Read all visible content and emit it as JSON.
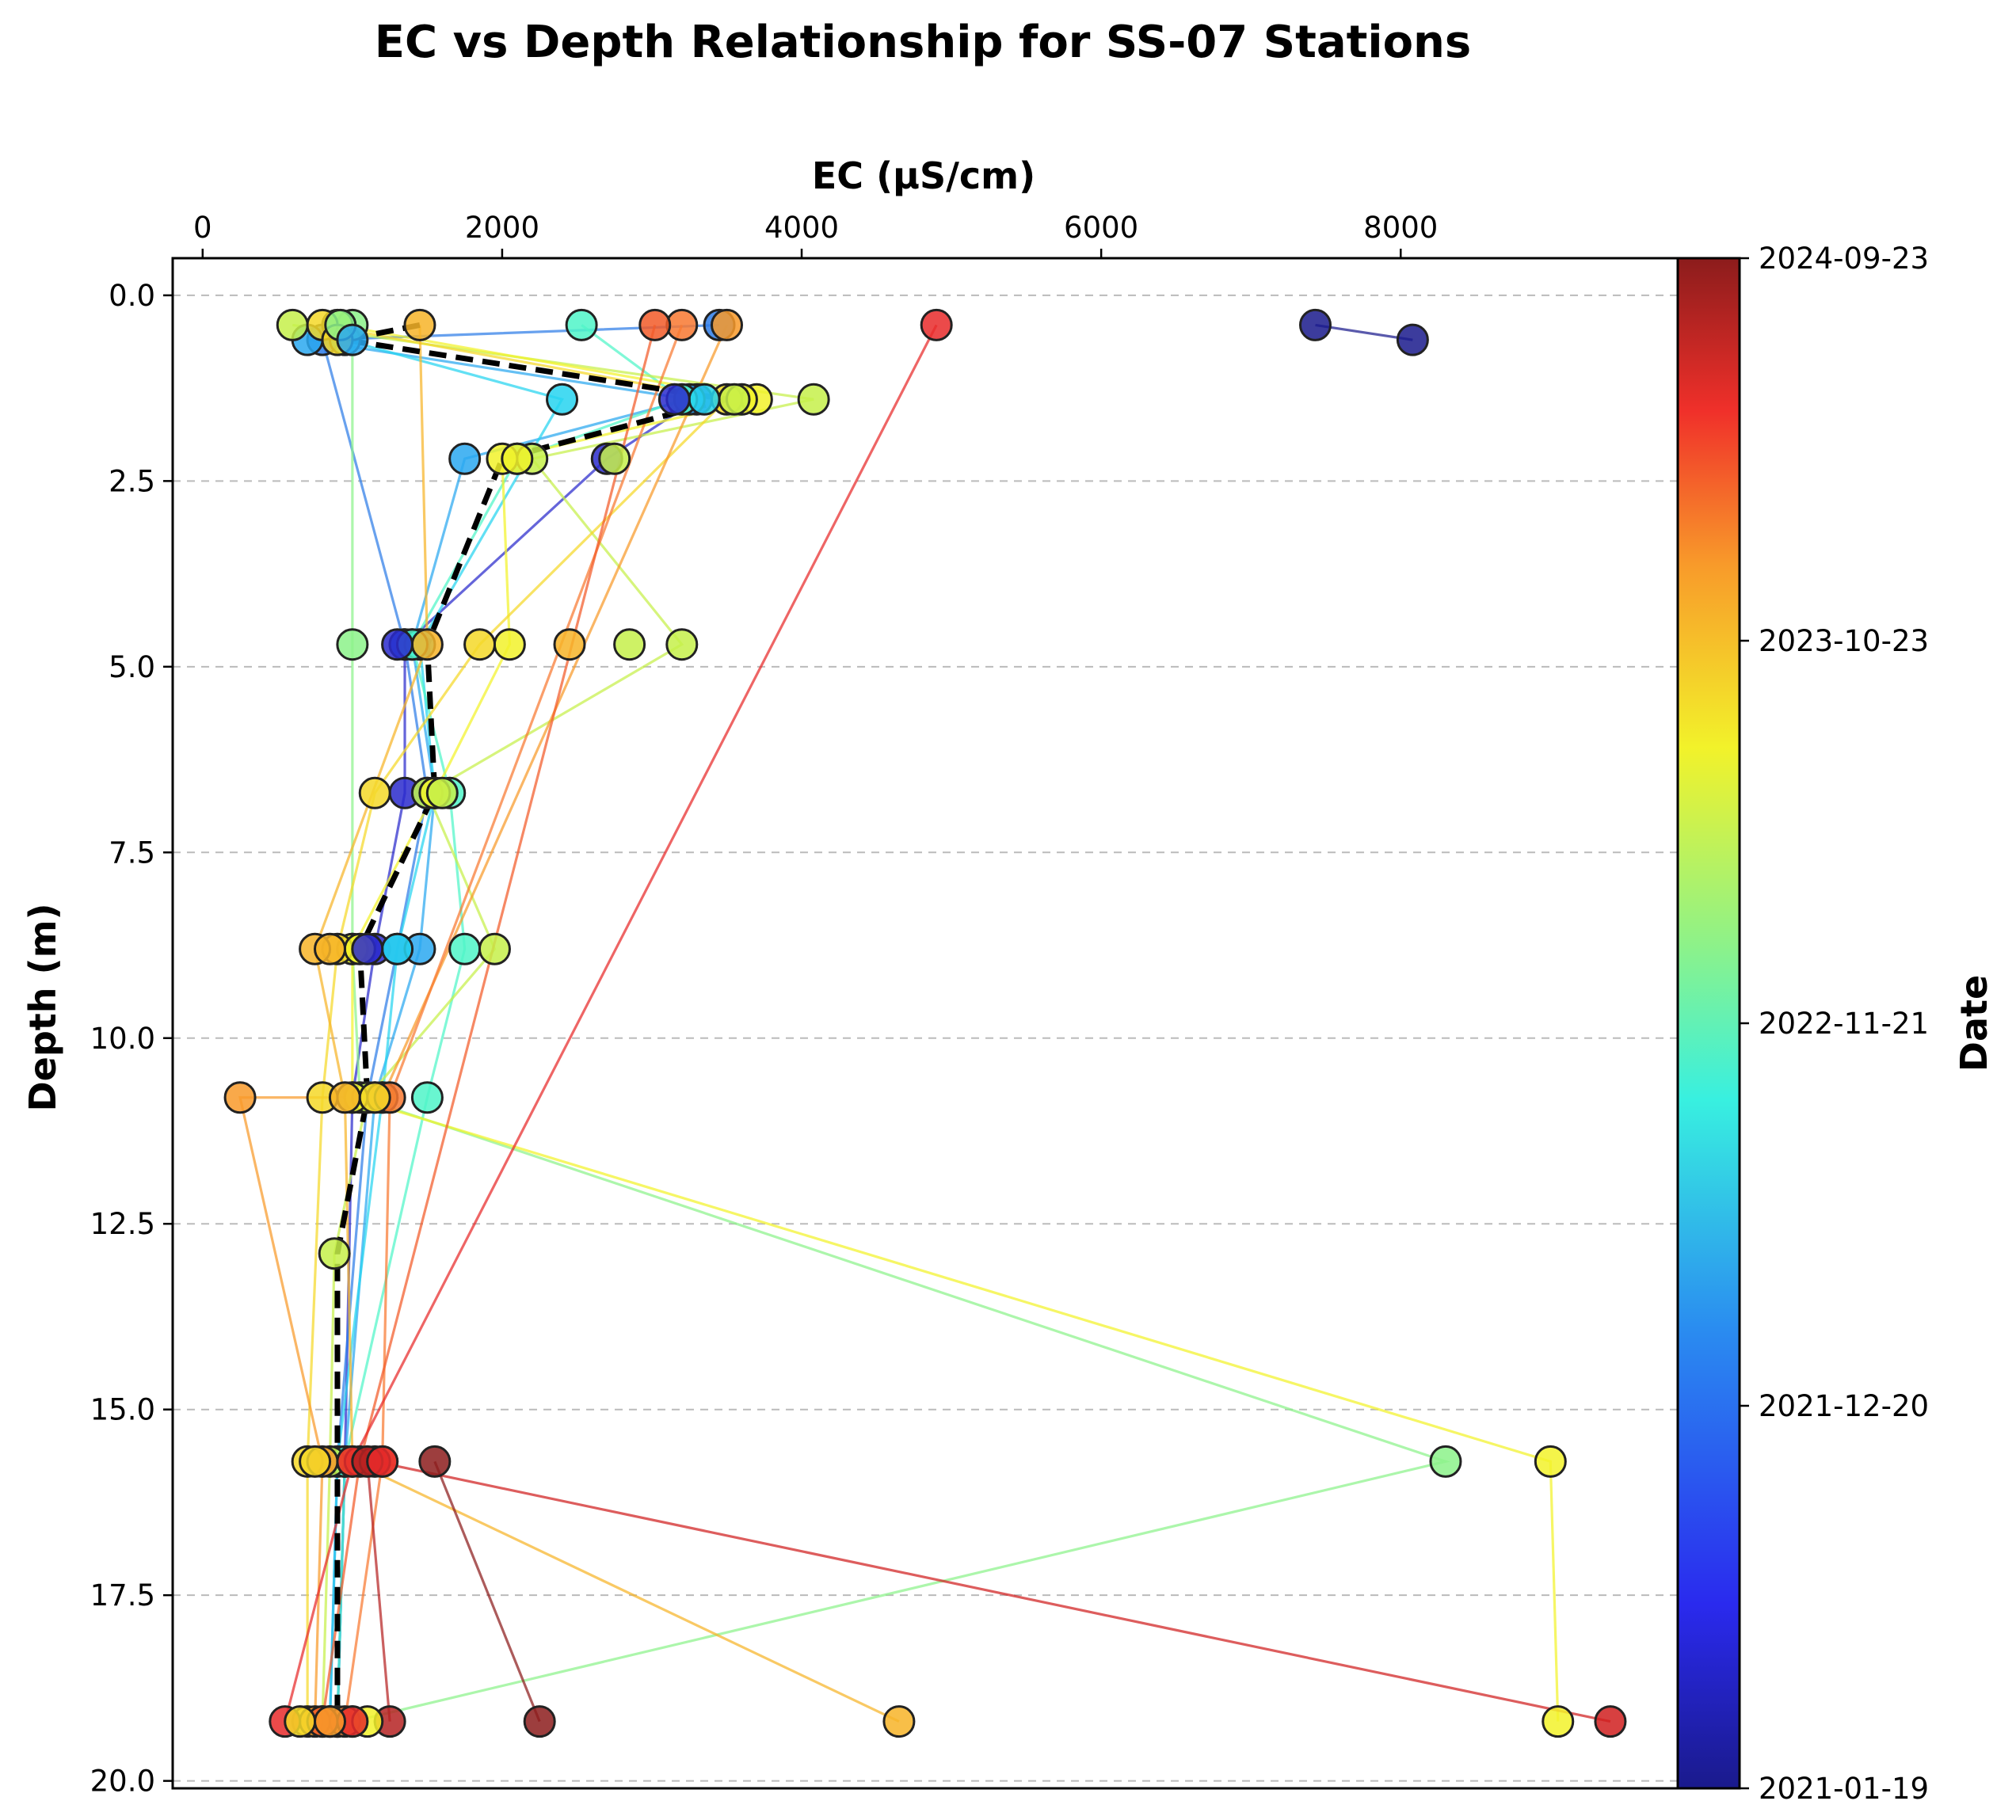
{
  "chart_data": {
    "type": "scatter",
    "title": "EC vs Depth Relationship for SS-07 Stations",
    "xlabel": "EC (µS/cm)",
    "ylabel": "Depth (m)",
    "x_axis_position": "top",
    "y_axis_inverted": true,
    "xlim": [
      -200,
      9850
    ],
    "ylim": [
      -0.5,
      20.1
    ],
    "x_ticks": [
      "0",
      "2000",
      "4000",
      "6000",
      "8000"
    ],
    "y_ticks": [
      "0.0",
      "2.5",
      "5.0",
      "7.5",
      "10.0",
      "12.5",
      "15.0",
      "17.5",
      "20.0"
    ],
    "grid": "y-dashed",
    "colorbar": {
      "label": "Date",
      "colormap": "jet",
      "ticks": [
        "2021-01-19",
        "2021-12-20",
        "2022-11-21",
        "2023-10-23",
        "2024-09-23"
      ]
    },
    "depths": [
      0.4,
      0.6,
      1.4,
      2.2,
      4.7,
      6.7,
      8.8,
      10.8,
      12.9,
      15.7,
      19.2
    ],
    "series": [
      {
        "date_frac": 0.03,
        "color": "#1a1a8c",
        "points": [
          [
            7430,
            0.4
          ],
          [
            8080,
            0.6
          ]
        ]
      },
      {
        "date_frac": 0.1,
        "color": "#2a2acc",
        "points": [
          [
            3300,
            1.4
          ],
          [
            2700,
            2.2
          ],
          [
            1350,
            4.7
          ],
          [
            1350,
            6.7
          ],
          [
            1150,
            8.8
          ],
          [
            1000,
            10.8
          ],
          [
            950,
            15.7
          ],
          [
            900,
            19.2
          ]
        ]
      },
      {
        "date_frac": 0.18,
        "color": "#2e7de8",
        "points": [
          [
            3450,
            0.4
          ],
          [
            800,
            0.6
          ],
          [
            1350,
            4.7
          ],
          [
            1500,
            6.7
          ],
          [
            1300,
            8.8
          ],
          [
            1100,
            10.8
          ],
          [
            900,
            15.7
          ],
          [
            850,
            19.2
          ]
        ]
      },
      {
        "date_frac": 0.26,
        "color": "#2aa8f0",
        "points": [
          [
            700,
            0.6
          ],
          [
            3250,
            1.4
          ],
          [
            1750,
            2.2
          ],
          [
            1400,
            4.7
          ],
          [
            1550,
            6.7
          ],
          [
            1450,
            8.8
          ],
          [
            1150,
            10.8
          ],
          [
            950,
            15.7
          ],
          [
            900,
            19.2
          ]
        ]
      },
      {
        "date_frac": 0.33,
        "color": "#26d4f0",
        "points": [
          [
            950,
            0.6
          ],
          [
            2400,
            1.4
          ],
          [
            1450,
            4.7
          ],
          [
            1550,
            6.7
          ],
          [
            1300,
            8.8
          ],
          [
            1200,
            10.8
          ],
          [
            900,
            15.7
          ],
          [
            850,
            19.2
          ]
        ]
      },
      {
        "date_frac": 0.42,
        "color": "#4ff5c8",
        "points": [
          [
            2530,
            0.4
          ],
          [
            3200,
            1.4
          ],
          [
            2100,
            2.2
          ],
          [
            1400,
            4.7
          ],
          [
            1650,
            6.7
          ],
          [
            1750,
            8.8
          ],
          [
            1500,
            10.8
          ],
          [
            950,
            15.7
          ],
          [
            900,
            19.2
          ]
        ]
      },
      {
        "date_frac": 0.5,
        "color": "#8cf28a",
        "points": [
          [
            1000,
            0.4
          ],
          [
            1000,
            4.7
          ],
          [
            1000,
            8.8
          ],
          [
            1050,
            10.8
          ],
          [
            8300,
            15.7
          ],
          [
            1000,
            19.2
          ]
        ]
      },
      {
        "date_frac": 0.58,
        "color": "#c6f04a",
        "points": [
          [
            600,
            0.4
          ],
          [
            4080,
            1.4
          ],
          [
            2200,
            2.2
          ],
          [
            3200,
            4.7
          ],
          [
            1500,
            6.7
          ],
          [
            1950,
            8.8
          ],
          [
            1100,
            10.8
          ],
          [
            880,
            12.9
          ],
          [
            850,
            15.7
          ],
          [
            800,
            19.2
          ]
        ]
      },
      {
        "date_frac": 0.66,
        "color": "#f2f22a",
        "points": [
          [
            900,
            0.4
          ],
          [
            3700,
            1.4
          ],
          [
            2000,
            2.2
          ],
          [
            2050,
            4.7
          ],
          [
            1550,
            6.7
          ],
          [
            1000,
            8.8
          ],
          [
            1000,
            10.8
          ],
          [
            9000,
            15.7
          ],
          [
            9050,
            19.2
          ]
        ]
      },
      {
        "date_frac": 0.72,
        "color": "#f5d828",
        "points": [
          [
            800,
            0.4
          ],
          [
            3500,
            1.4
          ],
          [
            1850,
            4.7
          ],
          [
            1150,
            6.7
          ],
          [
            900,
            8.8
          ],
          [
            800,
            10.8
          ],
          [
            700,
            15.7
          ],
          [
            700,
            19.2
          ]
        ]
      },
      {
        "date_frac": 0.78,
        "color": "#f7b428",
        "points": [
          [
            1450,
            0.4
          ],
          [
            1500,
            4.7
          ],
          [
            750,
            8.8
          ],
          [
            950,
            10.8
          ],
          [
            1000,
            15.7
          ],
          [
            4650,
            19.2
          ]
        ]
      },
      {
        "date_frac": 0.82,
        "color": "#f89a2a",
        "points": [
          [
            3500,
            0.4
          ],
          [
            1200,
            10.8
          ],
          [
            250,
            10.8
          ],
          [
            800,
            15.7
          ],
          [
            750,
            19.2
          ]
        ]
      },
      {
        "date_frac": 0.86,
        "color": "#f87830",
        "points": [
          [
            3200,
            0.4
          ],
          [
            1250,
            10.8
          ],
          [
            1200,
            15.7
          ],
          [
            950,
            19.2
          ]
        ]
      },
      {
        "date_frac": 0.88,
        "color": "#f25a28",
        "points": [
          [
            3020,
            0.4
          ],
          [
            1050,
            15.7
          ],
          [
            800,
            19.2
          ]
        ]
      },
      {
        "date_frac": 0.9,
        "color": "#e82a2a",
        "points": [
          [
            4900,
            0.4
          ],
          [
            1000,
            15.7
          ],
          [
            550,
            19.2
          ]
        ]
      },
      {
        "date_frac": 0.93,
        "color": "#d01e1e",
        "points": [
          [
            1150,
            15.7
          ],
          [
            9400,
            19.2
          ]
        ]
      },
      {
        "date_frac": 0.96,
        "color": "#b52222",
        "points": [
          [
            1100,
            15.7
          ],
          [
            1250,
            19.2
          ]
        ]
      },
      {
        "date_frac": 0.99,
        "color": "#8c1c1c",
        "points": [
          [
            1550,
            15.7
          ],
          [
            2250,
            19.2
          ]
        ]
      }
    ],
    "extra_points": [
      {
        "color": "#f5d828",
        "x": 900,
        "y": 0.6
      },
      {
        "color": "#8cf28a",
        "x": 920,
        "y": 0.4
      },
      {
        "color": "#2aa8f0",
        "x": 1000,
        "y": 0.6
      },
      {
        "color": "#f2f22a",
        "x": 3600,
        "y": 1.4
      },
      {
        "color": "#c6f04a",
        "x": 3550,
        "y": 1.4
      },
      {
        "color": "#26d4f0",
        "x": 3350,
        "y": 1.4
      },
      {
        "color": "#2a2acc",
        "x": 3150,
        "y": 1.4
      },
      {
        "color": "#c6f04a",
        "x": 2750,
        "y": 2.2
      },
      {
        "color": "#f2f22a",
        "x": 2100,
        "y": 2.2
      },
      {
        "color": "#f7b428",
        "x": 2450,
        "y": 4.7
      },
      {
        "color": "#c6f04a",
        "x": 2850,
        "y": 4.7
      },
      {
        "color": "#2a2acc",
        "x": 1300,
        "y": 4.7
      },
      {
        "color": "#c6f04a",
        "x": 1600,
        "y": 6.7
      },
      {
        "color": "#f2f22a",
        "x": 1050,
        "y": 8.8
      },
      {
        "color": "#2a2acc",
        "x": 1100,
        "y": 8.8
      },
      {
        "color": "#f7b428",
        "x": 850,
        "y": 8.8
      },
      {
        "color": "#f5d828",
        "x": 1150,
        "y": 10.8
      },
      {
        "color": "#f5d828",
        "x": 750,
        "y": 15.7
      },
      {
        "color": "#e82a2a",
        "x": 1200,
        "y": 15.7
      },
      {
        "color": "#f5d828",
        "x": 650,
        "y": 19.2
      },
      {
        "color": "#f2f22a",
        "x": 1100,
        "y": 19.2
      },
      {
        "color": "#e82a2a",
        "x": 1000,
        "y": 19.2
      },
      {
        "color": "#f89a2a",
        "x": 850,
        "y": 19.2
      }
    ],
    "median_profile": {
      "style": "black-dashed",
      "points": [
        [
          1450,
          0.4
        ],
        [
          950,
          0.6
        ],
        [
          3500,
          1.4
        ],
        [
          2000,
          2.2
        ],
        [
          1500,
          4.7
        ],
        [
          1550,
          6.7
        ],
        [
          1050,
          8.8
        ],
        [
          1100,
          10.8
        ],
        [
          900,
          12.9
        ],
        [
          900,
          15.7
        ],
        [
          900,
          19.2
        ]
      ]
    }
  }
}
